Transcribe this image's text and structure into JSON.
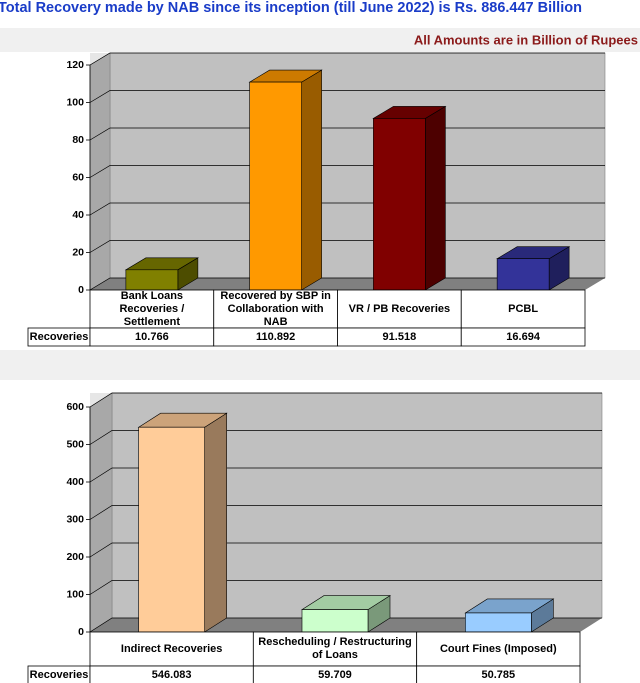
{
  "header": {
    "title": "Total Recovery made by NAB since its inception (till June 2022) is Rs. 886.447 Billion",
    "note": "All Amounts are in Billion of Rupees"
  },
  "chart_data": [
    {
      "type": "bar3d",
      "categories": [
        "Bank Loans Recoveries / Settlement",
        "Recovered by SBP in Collaboration with NAB",
        "VR / PB Recoveries",
        "PCBL"
      ],
      "series": [
        {
          "name": "Recoveries",
          "colors": [
            "#808000",
            "#ff9900",
            "#800000",
            "#333399"
          ],
          "values": [
            10.766,
            110.892,
            91.518,
            16.694
          ]
        }
      ],
      "ylim": [
        0,
        120
      ],
      "yticks": [
        0,
        20,
        40,
        60,
        80,
        100,
        120
      ],
      "grid": true
    },
    {
      "type": "bar3d",
      "categories": [
        "Indirect Recoveries",
        "Rescheduling / Restructuring of Loans",
        "Court Fines (Imposed)"
      ],
      "series": [
        {
          "name": "Recoveries",
          "colors": [
            "#ffcc99",
            "#ccffcc",
            "#99ccff"
          ],
          "values": [
            546.083,
            59.709,
            50.785
          ]
        }
      ],
      "ylim": [
        0,
        600
      ],
      "yticks": [
        0,
        100,
        200,
        300,
        400,
        500,
        600
      ],
      "grid": true
    }
  ]
}
